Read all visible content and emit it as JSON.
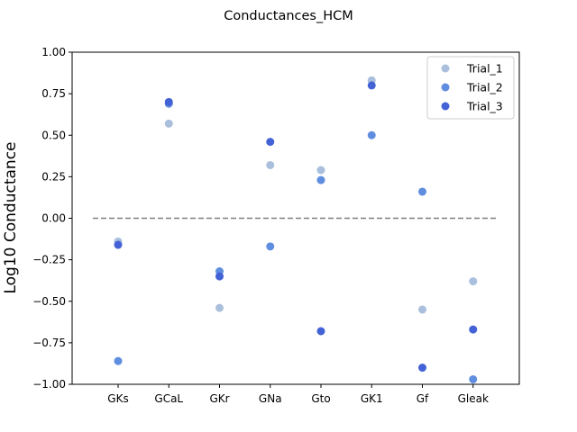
{
  "chart_data": {
    "type": "scatter",
    "title": "Conductances_HCM",
    "xlabel": "",
    "ylabel": "Log10 Conductance",
    "ylim": [
      -1.0,
      1.0
    ],
    "yticks": [
      "1.00",
      "0.75",
      "0.50",
      "0.25",
      "0.00",
      "−0.25",
      "−0.50",
      "−0.75",
      "−1.00"
    ],
    "ytick_values": [
      1.0,
      0.75,
      0.5,
      0.25,
      0.0,
      -0.25,
      -0.5,
      -0.75,
      -1.0
    ],
    "categories": [
      "GKs",
      "GCaL",
      "GKr",
      "GNa",
      "Gto",
      "GK1",
      "Gf",
      "Gleak"
    ],
    "reference_line": 0.0,
    "grid": false,
    "legend_position": "top-right",
    "series": [
      {
        "name": "Trial_1",
        "color": "#a9bfdc",
        "values": [
          -0.14,
          0.57,
          -0.54,
          0.32,
          0.29,
          0.83,
          -0.55,
          -0.38
        ]
      },
      {
        "name": "Trial_2",
        "color": "#5f8ee0",
        "values": [
          -0.86,
          0.69,
          -0.32,
          -0.17,
          0.23,
          0.5,
          0.16,
          -0.97
        ]
      },
      {
        "name": "Trial_3",
        "color": "#4362d6",
        "values": [
          -0.16,
          0.7,
          -0.35,
          0.46,
          -0.68,
          0.8,
          -0.9,
          -0.67
        ]
      }
    ]
  }
}
